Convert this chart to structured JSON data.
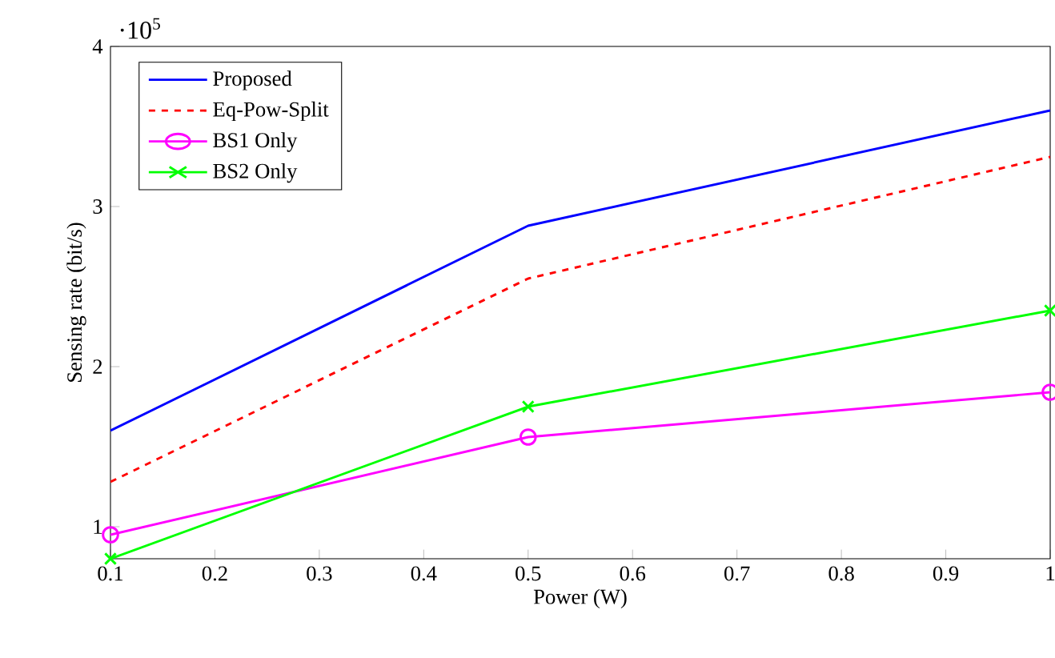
{
  "chart_data": {
    "type": "line",
    "xlabel": "Power (W)",
    "ylabel": "Sensing rate (bit/s)",
    "annotations": [
      "·10$^{5}$"
    ],
    "xlim": [
      0.1,
      1
    ],
    "xticks": [
      0.1,
      0.2,
      0.3,
      0.4,
      0.5,
      0.6,
      0.7,
      0.8,
      0.9,
      1
    ],
    "ylim": [
      0.8,
      4
    ],
    "yticks": [
      1,
      2,
      3,
      4
    ],
    "x": [
      0.1,
      0.5,
      1
    ],
    "legend": "top left",
    "grid": false,
    "series": [
      {
        "name": "Proposed",
        "color": "#0000ff",
        "values": [
          1.6,
          2.88,
          3.6
        ],
        "marker": "none",
        "line_style": "solid"
      },
      {
        "name": "Eq-Pow-Split",
        "color": "#ff0000",
        "values": [
          1.28,
          2.55,
          3.31
        ],
        "marker": "none",
        "line_style": "dashed"
      },
      {
        "name": "BS1 Only",
        "color": "#ff00ff",
        "values": [
          0.95,
          1.56,
          1.84
        ],
        "marker": "circle",
        "line_style": "solid"
      },
      {
        "name": "BS2 Only",
        "color": "#00ff00",
        "values": [
          0.8,
          1.75,
          2.35
        ],
        "marker": "cross",
        "line_style": "solid"
      }
    ]
  }
}
